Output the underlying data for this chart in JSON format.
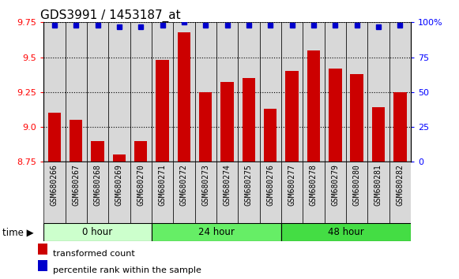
{
  "title": "GDS3991 / 1453187_at",
  "samples": [
    "GSM680266",
    "GSM680267",
    "GSM680268",
    "GSM680269",
    "GSM680270",
    "GSM680271",
    "GSM680272",
    "GSM680273",
    "GSM680274",
    "GSM680275",
    "GSM680276",
    "GSM680277",
    "GSM680278",
    "GSM680279",
    "GSM680280",
    "GSM680281",
    "GSM680282"
  ],
  "bar_values": [
    9.1,
    9.05,
    8.9,
    8.8,
    8.9,
    9.48,
    9.68,
    9.25,
    9.32,
    9.35,
    9.13,
    9.4,
    9.55,
    9.42,
    9.38,
    9.14,
    9.25
  ],
  "percentile_values": [
    98,
    98,
    98,
    97,
    97,
    98,
    100,
    98,
    98,
    98,
    98,
    98,
    98,
    98,
    98,
    97,
    98
  ],
  "bar_color": "#cc0000",
  "percentile_color": "#0000cc",
  "ylim_left": [
    8.75,
    9.75
  ],
  "ylim_right": [
    0,
    100
  ],
  "yticks_left": [
    8.75,
    9.0,
    9.25,
    9.5,
    9.75
  ],
  "yticks_right": [
    0,
    25,
    50,
    75,
    100
  ],
  "groups": [
    {
      "label": "0 hour",
      "start": 0,
      "end": 5,
      "color": "#ccffcc"
    },
    {
      "label": "24 hour",
      "start": 5,
      "end": 11,
      "color": "#66ee66"
    },
    {
      "label": "48 hour",
      "start": 11,
      "end": 17,
      "color": "#44dd44"
    }
  ],
  "xlabel": "time",
  "legend_bar_label": "transformed count",
  "legend_pct_label": "percentile rank within the sample",
  "background_color": "#ffffff",
  "title_fontsize": 11,
  "tick_label_fontsize": 7,
  "col_bg_color": "#d8d8d8",
  "plot_bg_color": "#ffffff"
}
